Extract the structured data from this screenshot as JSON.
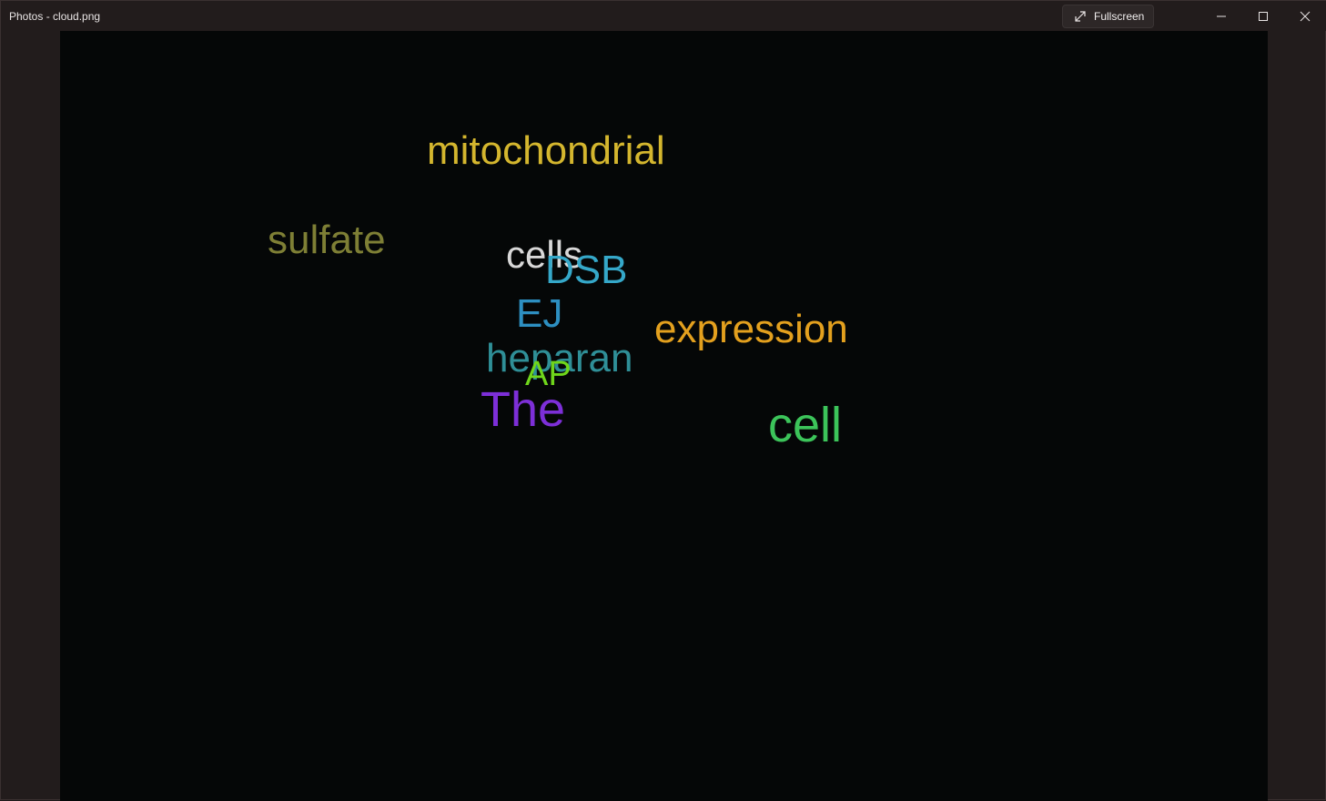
{
  "window": {
    "title": "Photos - cloud.png",
    "fullscreen_label": "Fullscreen",
    "icons": {
      "fullscreen": "expand-arrows-icon",
      "minimize": "minimize-icon",
      "maximize": "maximize-icon",
      "close": "close-icon"
    }
  },
  "image": {
    "background": "#050707",
    "words": [
      {
        "text": "mitochondrial",
        "color": "#d4b62e"
      },
      {
        "text": "sulfate",
        "color": "#7e7f35"
      },
      {
        "text": "cells",
        "color": "#d8d8d8"
      },
      {
        "text": "DSB",
        "color": "#35a8c9"
      },
      {
        "text": "EJ",
        "color": "#2d8fc1"
      },
      {
        "text": "expression",
        "color": "#e3a01e"
      },
      {
        "text": "heparan",
        "color": "#2f8f97"
      },
      {
        "text": "AP",
        "color": "#6fd61b"
      },
      {
        "text": "The",
        "color": "#7d2fd8"
      },
      {
        "text": "cell",
        "color": "#3cc45a"
      }
    ]
  }
}
